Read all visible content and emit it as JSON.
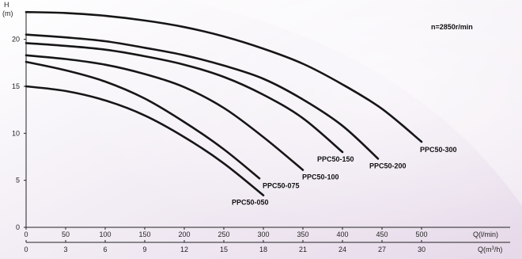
{
  "chart_data": {
    "type": "line",
    "title": "",
    "annotation": "n=2850r/min",
    "y_axis": {
      "label_top": "H",
      "unit": "(m)",
      "ticks": [
        0,
        5,
        10,
        15,
        20
      ],
      "range": [
        0,
        23
      ]
    },
    "x_axis_primary": {
      "unit": "Q(l/min)",
      "ticks": [
        0,
        50,
        100,
        150,
        200,
        250,
        300,
        350,
        400,
        450,
        500
      ],
      "range": [
        0,
        550
      ]
    },
    "x_axis_secondary": {
      "unit_prefix": "Q(m",
      "unit_sup": "3",
      "unit_suffix": "/h)",
      "ticks": [
        0,
        3,
        6,
        9,
        12,
        15,
        18,
        21,
        24,
        27,
        30
      ],
      "range": [
        0,
        33
      ]
    },
    "grid": false,
    "series": [
      {
        "name": "PPC50-050",
        "x": [
          0,
          50,
          100,
          150,
          200,
          250,
          300
        ],
        "y": [
          15.0,
          14.5,
          13.5,
          11.9,
          9.6,
          6.8,
          3.4
        ]
      },
      {
        "name": "PPC50-075",
        "x": [
          0,
          50,
          100,
          150,
          200,
          250,
          295
        ],
        "y": [
          17.6,
          16.7,
          15.5,
          13.7,
          11.2,
          8.3,
          5.2
        ]
      },
      {
        "name": "PPC50-100",
        "x": [
          0,
          50,
          100,
          150,
          200,
          250,
          300,
          350
        ],
        "y": [
          18.3,
          17.9,
          17.3,
          16.3,
          14.9,
          12.7,
          9.6,
          6.1
        ]
      },
      {
        "name": "PPC50-150",
        "x": [
          0,
          50,
          100,
          150,
          200,
          250,
          300,
          350,
          400
        ],
        "y": [
          19.6,
          19.3,
          18.9,
          18.2,
          17.3,
          16.0,
          14.1,
          11.6,
          8.0
        ]
      },
      {
        "name": "PPC50-200",
        "x": [
          0,
          50,
          100,
          150,
          200,
          250,
          300,
          350,
          400,
          445
        ],
        "y": [
          20.5,
          20.2,
          19.8,
          19.1,
          18.3,
          17.2,
          15.8,
          13.6,
          10.8,
          7.3
        ]
      },
      {
        "name": "PPC50-300",
        "x": [
          0,
          50,
          100,
          150,
          200,
          250,
          300,
          350,
          400,
          450,
          500
        ],
        "y": [
          22.9,
          22.8,
          22.5,
          22.0,
          21.3,
          20.3,
          19.0,
          17.4,
          15.2,
          12.6,
          9.1
        ]
      }
    ]
  }
}
